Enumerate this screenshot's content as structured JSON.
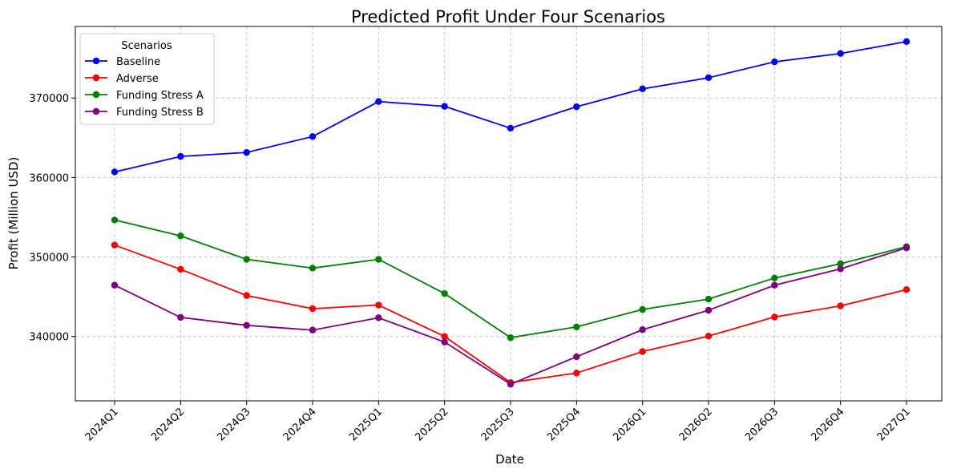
{
  "chart_data": {
    "type": "line",
    "title": "Predicted Profit Under Four Scenarios",
    "xlabel": "Date",
    "ylabel": "Profit (Million USD)",
    "categories": [
      "2024Q1",
      "2024Q2",
      "2024Q3",
      "2024Q4",
      "2025Q1",
      "2025Q2",
      "2025Q3",
      "2025Q4",
      "2026Q1",
      "2026Q2",
      "2026Q3",
      "2026Q4",
      "2027Q1"
    ],
    "ylim": [
      331900,
      379000
    ],
    "yticks": [
      340000,
      350000,
      360000,
      370000
    ],
    "grid": true,
    "legend": {
      "title": "Scenarios",
      "placement": "top-left"
    },
    "series": [
      {
        "name": "Baseline",
        "color": "#0000ff",
        "values": [
          360700,
          362650,
          363150,
          365150,
          369550,
          368950,
          366200,
          368900,
          371150,
          372550,
          374550,
          375600,
          377100
        ]
      },
      {
        "name": "Adverse",
        "color": "#ff0000",
        "values": [
          351500,
          348450,
          345150,
          343500,
          343950,
          340000,
          334200,
          335400,
          338100,
          340050,
          342450,
          343850,
          345900
        ]
      },
      {
        "name": "Funding Stress A",
        "color": "#008000",
        "values": [
          354650,
          352650,
          349700,
          348600,
          349700,
          345400,
          339850,
          341200,
          343400,
          344700,
          347350,
          349150,
          351300
        ]
      },
      {
        "name": "Funding Stress B",
        "color": "#800080",
        "values": [
          346450,
          342400,
          341400,
          340800,
          342350,
          339300,
          334000,
          337450,
          340850,
          343300,
          346450,
          348500,
          351150
        ]
      }
    ]
  }
}
